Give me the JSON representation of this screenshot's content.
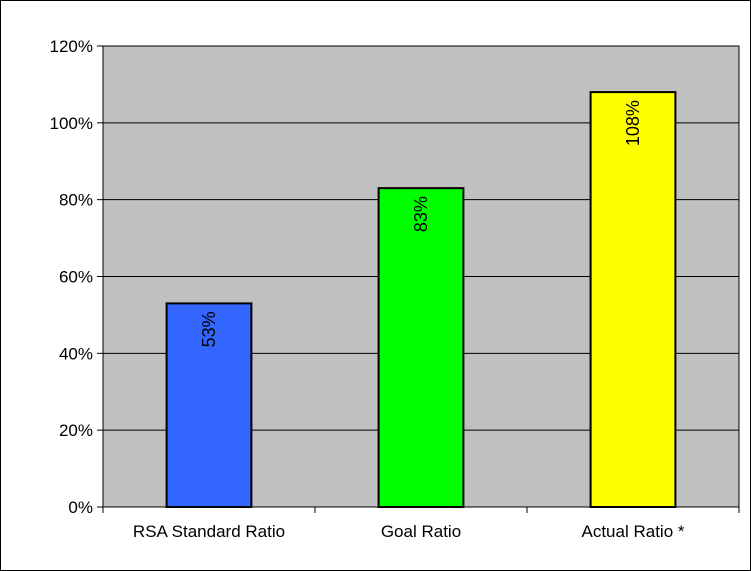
{
  "colors": {
    "plot_background": "#c0c0c0",
    "gridline": "#000000",
    "axis": "#000000"
  },
  "chart_data": {
    "type": "bar",
    "categories": [
      "RSA Standard Ratio",
      "Goal Ratio",
      "Actual Ratio *"
    ],
    "values": [
      53,
      83,
      108
    ],
    "data_labels": [
      "53%",
      "83%",
      "108%"
    ],
    "bar_colors": [
      "#3366ff",
      "#00ff00",
      "#ffff00"
    ],
    "y_ticks": [
      "0%",
      "20%",
      "40%",
      "60%",
      "80%",
      "100%",
      "120%"
    ],
    "ylim": [
      0,
      120
    ],
    "y_tick_step": 20,
    "grid": true,
    "title": "",
    "xlabel": "",
    "ylabel": "",
    "legend": "none"
  }
}
